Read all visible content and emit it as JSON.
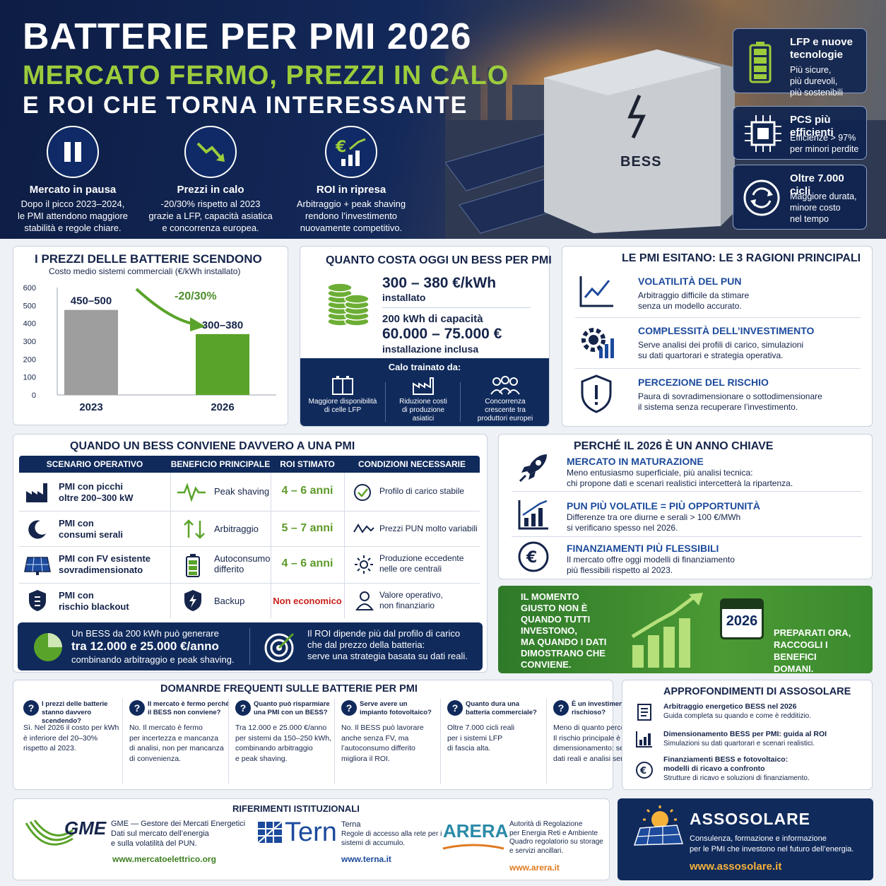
{
  "hero": {
    "title": "BATTERIE PER PMI 2026",
    "subtitle_green": "MERCATO FERMO, PREZZI IN CALO",
    "subtitle_white": "E ROI CHE TORNA INTERESSANTE",
    "bess_label": "BESS",
    "kpis": [
      {
        "title": "Mercato in pausa",
        "desc1": "Dopo il picco 2023–2024,",
        "desc2": "le PMI attendono maggiore",
        "desc3": "stabilità e regole chiare.",
        "icon": "pause-icon"
      },
      {
        "title": "Prezzi in calo",
        "desc1": "-20/30% rispetto al 2023",
        "desc2": "grazie a LFP, capacità asiatica",
        "desc3": "e concorrenza europea.",
        "icon": "trend-down-icon"
      },
      {
        "title": "ROI in ripresa",
        "desc1": "Arbitraggio + peak shaving",
        "desc2": "rendono l’investimento",
        "desc3": "nuovamente competitivo.",
        "icon": "euro-growth-icon"
      }
    ],
    "cards": [
      {
        "title1": "LFP e nuove",
        "title2": "tecnologie",
        "d1": "Più sicure,",
        "d2": "più durevoli,",
        "d3": "più sostenibili",
        "icon": "battery-icon"
      },
      {
        "title1": "PCS più efficienti",
        "title2": "",
        "d1": "Efficienze > 97%",
        "d2": "per minori perdite",
        "d3": "",
        "icon": "chip-icon"
      },
      {
        "title1": "Oltre 7.000 cicli",
        "title2": "",
        "d1": "Maggiore durata,",
        "d2": "minore costo",
        "d3": "nel tempo",
        "icon": "cycle-icon"
      }
    ]
  },
  "prices": {
    "title": "I PREZZI DELLE BATTERIE SCENDONO",
    "subtitle": "Costo medio sistemi commerciali (€/kWh installato)",
    "change_label": "-20/30%"
  },
  "chart_data": {
    "type": "bar",
    "categories": [
      "2023",
      "2026"
    ],
    "values": [
      475,
      340
    ],
    "data_labels": [
      "450–500",
      "300–380"
    ],
    "yticks": [
      "600",
      "500",
      "400",
      "300",
      "200",
      "100",
      "0"
    ],
    "ylim": [
      0,
      600
    ],
    "colors": [
      "#9e9e9e",
      "#5aa32a"
    ]
  },
  "cost": {
    "title": "QUANTO COSTA OGGI UN BESS PER PMI",
    "price": "300 – 380 €/kWh",
    "price_note": "installato",
    "capacity": "200 kWh di capacità",
    "total": "60.000 – 75.000 €",
    "total_note": "installazione inclusa",
    "drivers_title": "Calo trainato da:",
    "drivers": [
      {
        "l1": "Maggiore disponibilità",
        "l2": "di celle LFP",
        "l3": "",
        "icon": "battery-cells-icon"
      },
      {
        "l1": "Riduzione costi",
        "l2": "di produzione",
        "l3": "asiatici",
        "icon": "factory-icon"
      },
      {
        "l1": "Concorrenza",
        "l2": "crescente tra",
        "l3": "produttori europei",
        "icon": "people-icon"
      }
    ]
  },
  "hesitate": {
    "title": "LE PMI ESITANO: LE 3 RAGIONI PRINCIPALI",
    "items": [
      {
        "title": "VOLATILITÀ DEL PUN",
        "d1": "Arbitraggio difficile da stimare",
        "d2": "senza un modello accurato.",
        "icon": "line-chart-icon"
      },
      {
        "title": "COMPLESSITÀ DELL’INVESTIMENTO",
        "d1": "Serve analisi dei profili di carico, simulazioni",
        "d2": "su dati quartorari e strategia operativa.",
        "icon": "gear-chart-icon"
      },
      {
        "title": "PERCEZIONE DEL RISCHIO",
        "d1": "Paura di sovradimensionare o sottodimensionare",
        "d2": "il sistema senza recuperare l’investimento.",
        "icon": "shield-alert-icon"
      }
    ]
  },
  "when": {
    "title": "QUANDO UN BESS CONVIENE DAVVERO A UNA PMI",
    "headers": [
      "SCENARIO OPERATIVO",
      "BENEFICIO PRINCIPALE",
      "ROI STIMATO",
      "CONDIZIONI NECESSARIE"
    ],
    "rows": [
      {
        "s1": "PMI con picchi",
        "s2": "oltre 200–300 kW",
        "b1": "Peak shaving",
        "b2": "",
        "roi": "4 – 6 anni",
        "c1": "Profilo di carico stabile",
        "c2": "",
        "si": "factory-icon",
        "bi": "pulse-icon",
        "ci": "check-icon"
      },
      {
        "s1": "PMI con",
        "s2": "consumi serali",
        "b1": "Arbitraggio",
        "b2": "",
        "roi": "5 – 7 anni",
        "c1": "Prezzi PUN molto variabili",
        "c2": "",
        "si": "moon-icon",
        "bi": "arrows-updown-icon",
        "ci": "wave-icon"
      },
      {
        "s1": "PMI con FV esistente",
        "s2": "sovradimensionato",
        "b1": "Autoconsumo",
        "b2": "differito",
        "roi": "4 – 6 anni",
        "c1": "Produzione eccedente",
        "c2": "nelle ore centrali",
        "si": "solar-panel-icon",
        "bi": "battery-icon",
        "ci": "sun-icon"
      },
      {
        "s1": "PMI con",
        "s2": "rischio blackout",
        "b1": "Backup",
        "b2": "",
        "roi": "Non economico",
        "c1": "Valore operativo,",
        "c2": "non finanziario",
        "si": "shield-icon",
        "bi": "bolt-shield-icon",
        "ci": "user-icon"
      }
    ],
    "footer_left_1": "Un BESS da 200 kWh può generare",
    "footer_left_2": "tra 12.000 e 25.000 €/anno",
    "footer_left_3": "combinando arbitraggio e peak shaving.",
    "footer_right_1": "Il ROI dipende più dal profilo di carico",
    "footer_right_2": "che dal prezzo della batteria:",
    "footer_right_3": "serve una strategia basata su dati reali."
  },
  "why2026": {
    "title": "PERCHÉ IL 2026 È UN ANNO CHIAVE",
    "items": [
      {
        "title": "MERCATO IN MATURAZIONE",
        "d1": "Meno entusiasmo superficiale, più analisi tecnica:",
        "d2": "chi propone dati e scenari realistici intercetterà la ripartenza.",
        "icon": "rocket-icon"
      },
      {
        "title": "PUN PIÙ VOLATILE = PIÙ OPPORTUNITÀ",
        "d1": "Differenze tra ore diurne e serali > 100 €/MWh",
        "d2": "si verificano spesso nel 2026.",
        "icon": "bar-growth-icon"
      },
      {
        "title": "FINANZIAMENTI PIÙ FLESSIBILI",
        "d1": "Il mercato offre oggi modelli di finanziamento",
        "d2": "più flessibili rispetto al 2023.",
        "icon": "euro-icon"
      }
    ]
  },
  "cta": {
    "lines": [
      "IL MOMENTO",
      "GIUSTO NON È",
      "QUANDO TUTTI",
      "INVESTONO,",
      "MA QUANDO I DATI",
      "DIMOSTRANO CHE",
      "CONVIENE."
    ],
    "year": "2026",
    "right": [
      "PREPARATI ORA,",
      "RACCOGLI I BENEFICI",
      "DOMANI."
    ]
  },
  "faq": {
    "title": "DOMANRDE FREQUENTI SULLE BATTERIE PER PMI",
    "items": [
      {
        "q": [
          "I prezzi delle batterie",
          "stanno davvero scendendo?"
        ],
        "a": [
          "Sì. Nel 2026 il costo per kWh",
          "è inferiore del 20–30%",
          "rispetto al 2023."
        ]
      },
      {
        "q": [
          "Il mercato è fermo perché",
          "il BESS non conviene?"
        ],
        "a": [
          "No. Il mercato è fermo",
          "per incertezza e mancanza",
          "di analisi, non per mancanza",
          "di convenienza."
        ]
      },
      {
        "q": [
          "Quanto può risparmiare",
          "una PMI con un BESS?"
        ],
        "a": [
          "Tra 12.000 e 25.000 €/anno",
          "per sistemi da 150–250 kWh,",
          "combinando arbitraggio",
          "e peak shaving."
        ]
      },
      {
        "q": [
          "Serve avere un",
          "impianto fotovoltaico?"
        ],
        "a": [
          "No. Il BESS può lavorare",
          "anche senza FV, ma",
          "l’autoconsumo differito",
          "migliora il ROI."
        ]
      },
      {
        "q": [
          "Quanto dura una",
          "batteria commerciale?"
        ],
        "a": [
          "Oltre 7.000 cicli reali",
          "per i sistemi LFP",
          "di fascia alta."
        ]
      },
      {
        "q": [
          "È un investimento",
          "rischioso?"
        ],
        "a": [
          "Meno di quanto percepito.",
          "Il rischio principale è il",
          "dimensionamento: servono",
          "dati reali e analisi serie."
        ]
      }
    ]
  },
  "deep": {
    "title": "APPROFONDIMENTI DI ASSOSOLARE",
    "items": [
      {
        "t1": "Arbitraggio energetico BESS nel 2026",
        "t2": "",
        "d": "Guida completa su quando e come è redditizio.",
        "icon": "document-icon"
      },
      {
        "t1": "Dimensionamento BESS per PMI: guida al ROI",
        "t2": "",
        "d": "Simulazioni su dati quartorari e scenari realistici.",
        "icon": "bar-chart-icon"
      },
      {
        "t1": "Finanziamenti BESS e fotovoltaico:",
        "t2": "modelli di ricavo a confronto",
        "d": "Strutture di ricavo e soluzioni di finanziamento.",
        "icon": "euro-icon"
      }
    ]
  },
  "refs": {
    "title": "RIFERIMENTI ISTITUZIONALI",
    "gme": {
      "logo": "GME",
      "l1": "GME — Gestore dei Mercati Energetici",
      "l2": "Dati sul mercato dell’energia",
      "l3": "e sulla volatilità del PUN.",
      "url": "www.mercatoelettrico.org"
    },
    "tern": {
      "logo": "Tern",
      "l1": "Terna",
      "l2": "Regole di accesso alla rete per i",
      "l3": "sistemi di accumulo.",
      "url": "www.terna.it"
    },
    "arera": {
      "logo": "ARERA",
      "l1": "Autorità di Regolazione",
      "l2": "per Energia Reti e Ambiente",
      "l3": "Quadro regolatorio su storage",
      "l4": "e servizi ancillari.",
      "url": "www.arera.it"
    }
  },
  "assosolare": {
    "name": "ASSOSOLARE",
    "d1": "Consulenza, formazione e informazione",
    "d2": "per le PMI che investono nel futuro dell’energia.",
    "url": "www.assosolare.it"
  }
}
